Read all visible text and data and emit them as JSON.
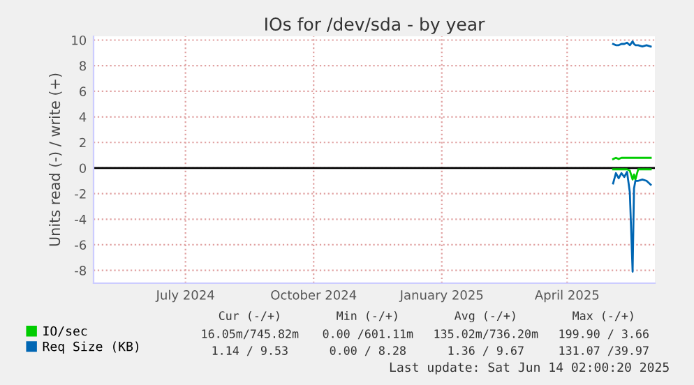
{
  "chart_data": {
    "type": "line",
    "title": "IOs for /dev/sda - by year",
    "ylabel": "Units read (-) / write (+)",
    "x": [
      "2025-05-04",
      "2025-05-06",
      "2025-05-08",
      "2025-05-10",
      "2025-05-12",
      "2025-05-14",
      "2025-05-16",
      "2025-05-18",
      "2025-05-19",
      "2025-05-20",
      "2025-05-22",
      "2025-05-25",
      "2025-05-28",
      "2025-05-31"
    ],
    "series": [
      {
        "name": "IO/sec",
        "color": "#00cc00",
        "values": [
          0.7,
          0.8,
          0.7,
          0.8,
          0.8,
          0.8,
          0.8,
          0.8,
          0.8,
          0.8,
          0.8,
          0.8,
          0.8,
          0.8
        ]
      },
      {
        "color": "#00cc00",
        "values": [
          -0.1,
          -0.1,
          -0.1,
          -0.1,
          -0.1,
          -0.1,
          -0.2,
          -0.9,
          -0.5,
          -0.9,
          -0.1,
          -0.1,
          -0.1,
          -0.1
        ]
      },
      {
        "name": "Req Size (KB)",
        "color": "#0066b3",
        "values": [
          9.7,
          9.6,
          9.6,
          9.7,
          9.7,
          9.8,
          9.6,
          9.9,
          9.7,
          9.6,
          9.6,
          9.5,
          9.6,
          9.5
        ]
      },
      {
        "color": "#0066b3",
        "values": [
          -1.2,
          -0.4,
          -0.8,
          -0.4,
          -0.7,
          -0.3,
          -1.9,
          -8.1,
          -1.6,
          -1.0,
          -1.0,
          -0.9,
          -1.0,
          -1.3
        ]
      }
    ],
    "xlim": [
      "2024-04-26",
      "2025-06-03"
    ],
    "xticks": [
      {
        "value": "2024-07-01",
        "label": "July 2024"
      },
      {
        "value": "2024-10-01",
        "label": "October 2024"
      },
      {
        "value": "2025-01-01",
        "label": "January 2025"
      },
      {
        "value": "2025-04-01",
        "label": "April 2025"
      }
    ],
    "ylim": [
      -9,
      10.3
    ],
    "yticks": [
      -8,
      -6,
      -4,
      -2,
      0,
      2,
      4,
      6,
      8,
      10
    ],
    "ref_lines": [
      {
        "axis": "y",
        "value": 0,
        "color": "#000000"
      }
    ],
    "grid": true,
    "legend": "bottom left",
    "marker": "none",
    "line_style": "solid",
    "annotations": [
      "Cur (-/+)",
      "Min (-/+)",
      "Avg (-/+)",
      "Max (-/+)",
      "16.05m/745.82m",
      "0.00 /601.11m",
      "135.02m/736.20m",
      "199.90 / 3.66",
      "1.14 / 9.53",
      "0.00 / 8.28",
      "1.36 / 9.67",
      "131.07 /39.97",
      "Last update: Sat Jun 14 02:00:20 2025"
    ]
  }
}
